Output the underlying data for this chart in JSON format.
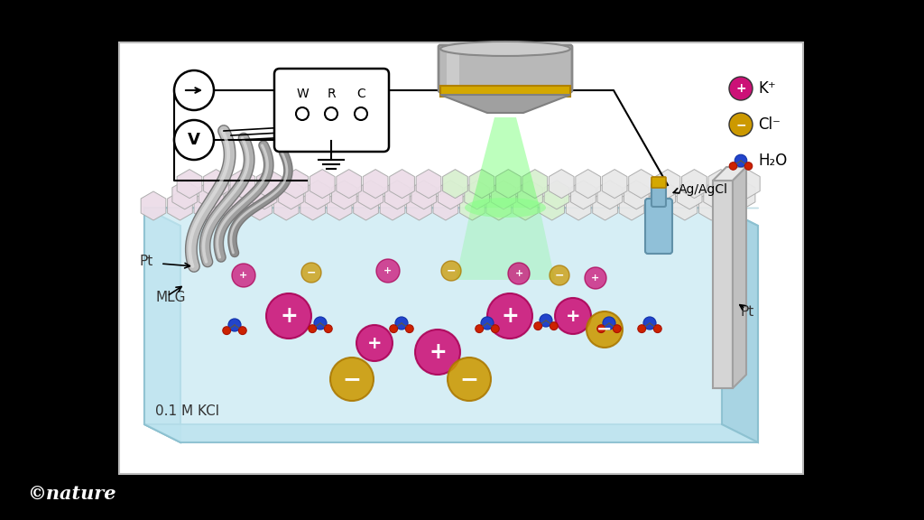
{
  "bg_color": "#000000",
  "panel_bg": "#ffffff",
  "liquid_color": "#c5e8f0",
  "graphene_color_base": "#e8e8e8",
  "graphene_edge": "#aaaaaa",
  "laser_color": "#33ee33",
  "k_color": "#cc1177",
  "cl_color": "#cc9900",
  "o_color": "#2244cc",
  "h_color": "#cc2200",
  "legend_items": [
    {
      "label": "K⁺",
      "color": "#cc1177",
      "sign": "+"
    },
    {
      "label": "Cl⁻",
      "color": "#cc9900",
      "sign": "−"
    },
    {
      "label": "H₂O",
      "color": null,
      "sign": null
    }
  ],
  "labels": {
    "copyright": "©nature",
    "solution": "0.1 M KCl",
    "mlg": "MLG",
    "pt_left": "Pt",
    "pt_right": "Pt",
    "ag_agcl": "Ag/AgCl"
  }
}
